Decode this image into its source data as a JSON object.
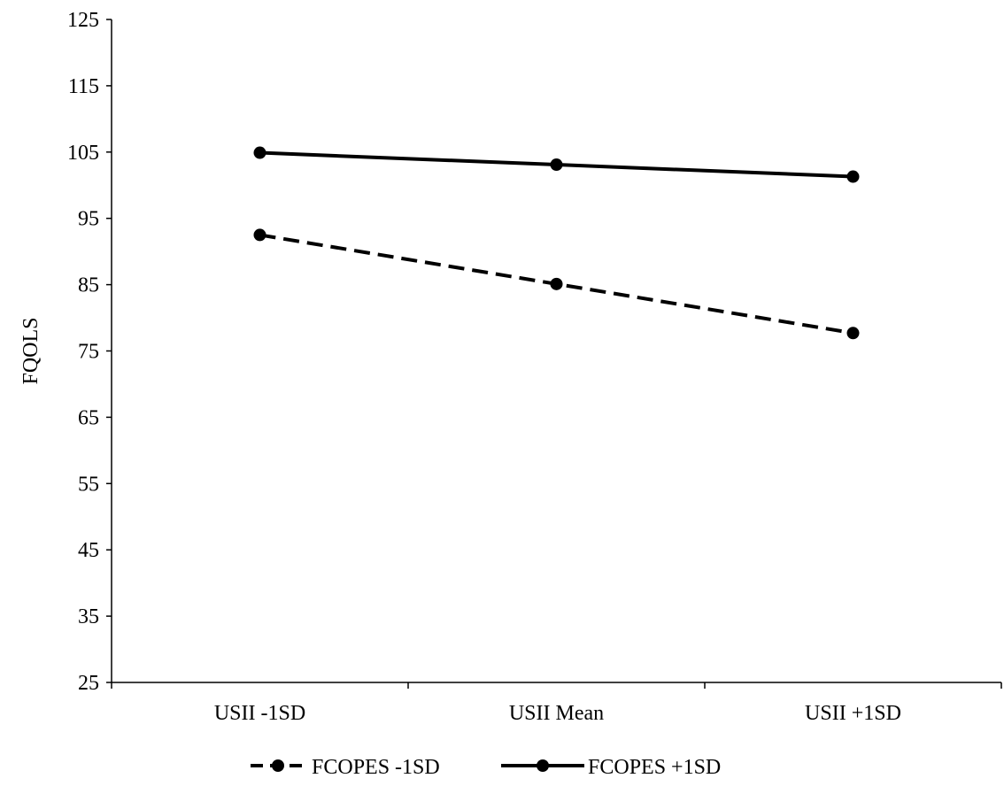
{
  "chart_data": {
    "type": "line",
    "title": "",
    "xlabel": "",
    "ylabel": "FQOLS",
    "categories": [
      "USII -1SD",
      "USII Mean",
      "USII +1SD"
    ],
    "ylim": [
      25,
      125
    ],
    "yticks": [
      25,
      35,
      45,
      55,
      65,
      75,
      85,
      95,
      105,
      115,
      125
    ],
    "grid": false,
    "legend_position": "bottom",
    "series": [
      {
        "name": "FCOPES -1SD",
        "values": [
          92.5,
          85.1,
          77.7
        ],
        "style": "dashed",
        "color": "#000000"
      },
      {
        "name": "FCOPES +1SD",
        "values": [
          104.9,
          103.1,
          101.3
        ],
        "style": "solid",
        "color": "#000000"
      }
    ]
  }
}
